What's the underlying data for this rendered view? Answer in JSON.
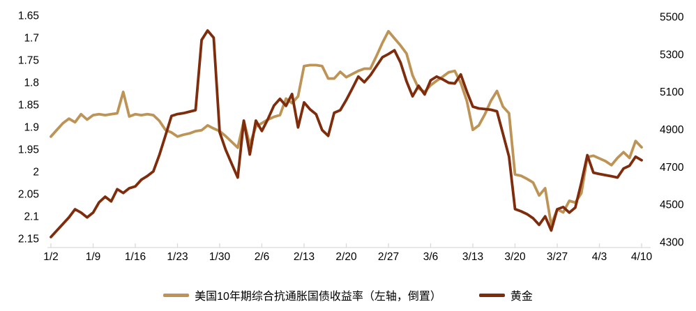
{
  "legend": {
    "series1": "美国10年期综合抗通胀国债收益率（左轴，倒置）",
    "series2": "黄金"
  },
  "chart_data": {
    "type": "line",
    "grid": false,
    "legend_position": "bottom",
    "axis_color": "#D9D9D9",
    "text_color": "#000000",
    "left_axis": {
      "min": 1.65,
      "max": 2.15,
      "step": 0.05,
      "inverted": true,
      "ticks": [
        "1.65",
        "1.7",
        "1.75",
        "1.8",
        "1.85",
        "1.9",
        "1.95",
        "2",
        "2.05",
        "2.1",
        "2.15"
      ]
    },
    "right_axis": {
      "min": 4300,
      "max": 5500,
      "step": 200,
      "ticks": [
        "5500",
        "5300",
        "5100",
        "4900",
        "4700",
        "4500",
        "4300"
      ]
    },
    "x_tick_labels": [
      "1/2",
      "1/9",
      "1/16",
      "1/23",
      "1/30",
      "2/6",
      "2/13",
      "2/20",
      "2/27",
      "3/6",
      "3/13",
      "3/20",
      "3/27",
      "4/3",
      "4/10"
    ],
    "x_tick_every": 7,
    "dates": [
      "1/2",
      "1/3",
      "1/4",
      "1/5",
      "1/6",
      "1/7",
      "1/8",
      "1/9",
      "1/10",
      "1/11",
      "1/12",
      "1/13",
      "1/14",
      "1/15",
      "1/16",
      "1/17",
      "1/18",
      "1/19",
      "1/20",
      "1/21",
      "1/22",
      "1/23",
      "1/24",
      "1/25",
      "1/26",
      "1/27",
      "1/28",
      "1/29",
      "1/30",
      "1/31",
      "2/1",
      "2/2",
      "2/3",
      "2/4",
      "2/5",
      "2/6",
      "2/7",
      "2/8",
      "2/9",
      "2/10",
      "2/11",
      "2/12",
      "2/13",
      "2/14",
      "2/15",
      "2/16",
      "2/17",
      "2/18",
      "2/19",
      "2/20",
      "2/21",
      "2/22",
      "2/23",
      "2/24",
      "2/25",
      "2/26",
      "2/27",
      "2/28",
      "3/1",
      "3/2",
      "3/3",
      "3/4",
      "3/5",
      "3/6",
      "3/7",
      "3/8",
      "3/9",
      "3/10",
      "3/11",
      "3/12",
      "3/13",
      "3/14",
      "3/15",
      "3/16",
      "3/17",
      "3/18",
      "3/19",
      "3/20",
      "3/21",
      "3/22",
      "3/23",
      "3/24",
      "3/25",
      "3/26",
      "3/27",
      "3/28",
      "3/29",
      "3/30",
      "3/31",
      "4/1",
      "4/2",
      "4/3",
      "4/4",
      "4/5",
      "4/6",
      "4/7",
      "4/8",
      "4/9",
      "4/10"
    ],
    "series": [
      {
        "name": "美国10年期综合抗通胀国债收益率（左轴，倒置）",
        "axis": "left",
        "color": "#BE9456",
        "values": [
          1.92,
          1.905,
          1.89,
          1.88,
          1.888,
          1.87,
          1.882,
          1.872,
          1.87,
          1.872,
          1.87,
          1.868,
          1.82,
          1.875,
          1.87,
          1.872,
          1.87,
          1.872,
          1.885,
          1.905,
          1.911,
          1.92,
          1.916,
          1.913,
          1.908,
          1.906,
          1.895,
          1.902,
          1.908,
          1.919,
          1.932,
          1.945,
          1.885,
          1.938,
          1.898,
          1.89,
          1.882,
          1.876,
          1.872,
          1.835,
          1.845,
          1.83,
          1.762,
          1.76,
          1.76,
          1.762,
          1.79,
          1.79,
          1.775,
          1.787,
          1.78,
          1.773,
          1.768,
          1.768,
          1.74,
          1.71,
          1.684,
          1.7,
          1.716,
          1.734,
          1.783,
          1.812,
          1.82,
          1.805,
          1.795,
          1.786,
          1.776,
          1.773,
          1.8,
          1.84,
          1.905,
          1.895,
          1.87,
          1.84,
          1.818,
          1.853,
          1.868,
          2.005,
          2.008,
          2.015,
          2.023,
          2.052,
          2.036,
          2.118,
          2.083,
          2.09,
          2.064,
          2.068,
          2.047,
          1.966,
          1.963,
          1.969,
          1.975,
          1.984,
          1.968,
          1.955,
          1.968,
          1.93,
          1.944
        ]
      },
      {
        "name": "黄金",
        "axis": "right",
        "color": "#7F2C0D",
        "values": [
          4330,
          4365,
          4400,
          4435,
          4478,
          4460,
          4435,
          4460,
          4515,
          4545,
          4520,
          4585,
          4565,
          4590,
          4600,
          4635,
          4655,
          4680,
          4768,
          4870,
          4975,
          4985,
          4990,
          4998,
          5006,
          5380,
          5430,
          5392,
          4888,
          4795,
          4720,
          4647,
          4950,
          4770,
          4950,
          4895,
          4958,
          5030,
          5066,
          5029,
          5092,
          4914,
          5047,
          5010,
          4984,
          4900,
          4869,
          4992,
          5006,
          5060,
          5121,
          5185,
          5155,
          5192,
          5240,
          5288,
          5305,
          5325,
          5260,
          5160,
          5080,
          5136,
          5090,
          5165,
          5185,
          5170,
          5152,
          5148,
          5196,
          5105,
          5025,
          5015,
          5012,
          5008,
          5000,
          4880,
          4758,
          4479,
          4467,
          4452,
          4430,
          4395,
          4440,
          4365,
          4478,
          4490,
          4460,
          4487,
          4620,
          4766,
          4673,
          4666,
          4660,
          4654,
          4647,
          4695,
          4710,
          4758,
          4739
        ]
      }
    ]
  }
}
